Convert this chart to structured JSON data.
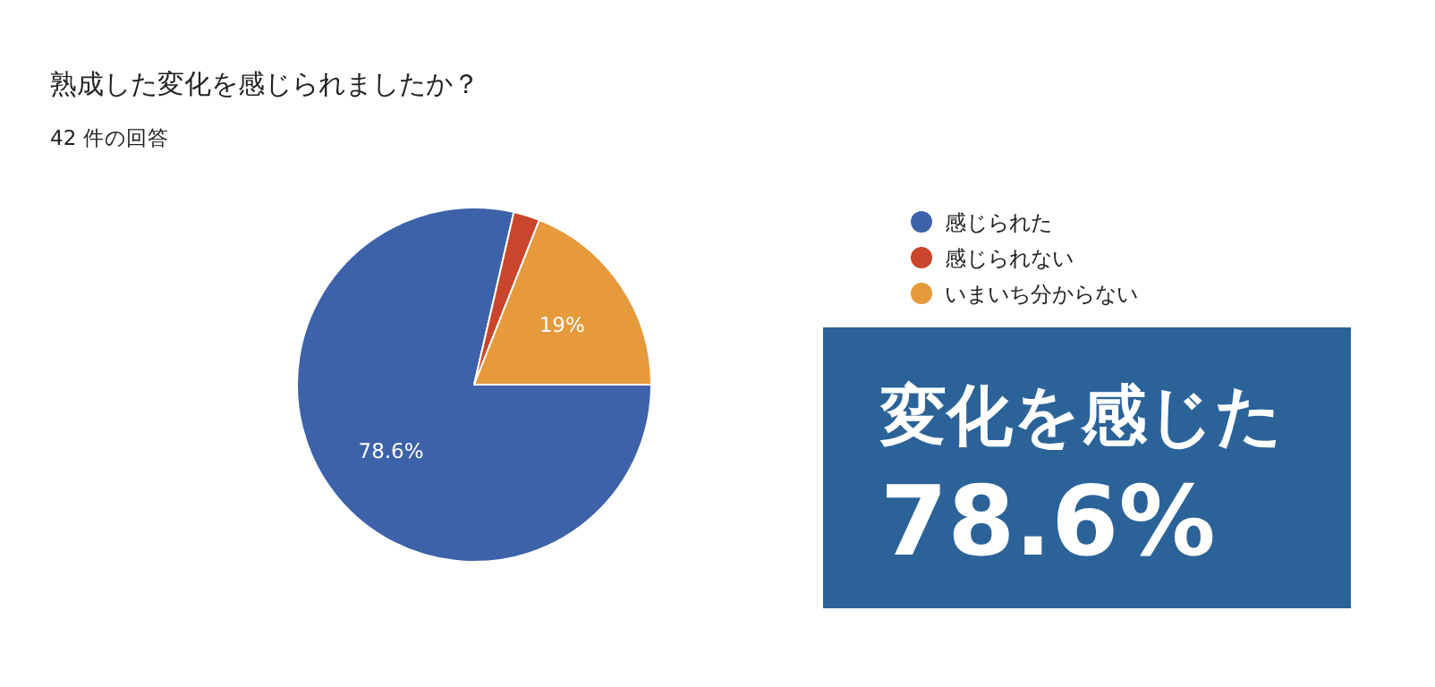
{
  "chart_data": {
    "type": "pie",
    "title": "熟成した変化を感じられましたか？",
    "subtitle": "42 件の回答",
    "categories": [
      "感じられた",
      "感じられない",
      "いまいち分からない"
    ],
    "values": [
      78.6,
      2.4,
      19
    ],
    "colors": [
      "#3d62a9",
      "#c9452b",
      "#e69a3b"
    ],
    "value_labels": [
      "78.6%",
      null,
      "19%"
    ],
    "legend": "right",
    "annotations": [
      "変化を感じた",
      "78.6%"
    ]
  }
}
